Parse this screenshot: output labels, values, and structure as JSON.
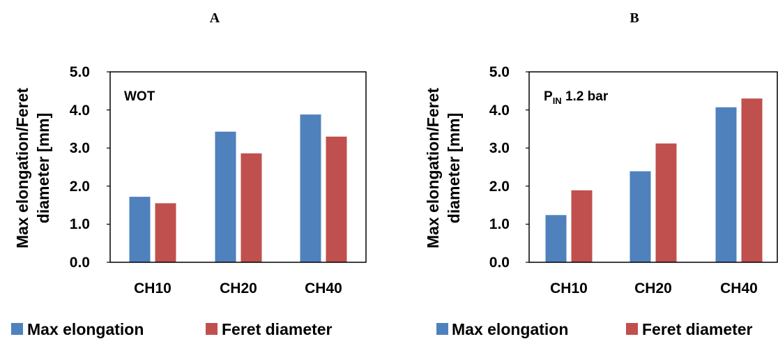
{
  "chart_data": [
    {
      "type": "bar",
      "panel_label": "A",
      "annotation": "WOT",
      "ylabel_lines": [
        "Max elongation/Feret",
        "diameter [mm]"
      ],
      "xlabel": "",
      "categories": [
        "CH10",
        "CH20",
        "CH40"
      ],
      "ylim": [
        0,
        5
      ],
      "yticks": [
        "0.0",
        "1.0",
        "2.0",
        "3.0",
        "4.0",
        "5.0"
      ],
      "grid": false,
      "legend_position": "bottom",
      "series": [
        {
          "name": "Max elongation",
          "color": "#4F81BD",
          "values": [
            1.72,
            3.43,
            3.88
          ]
        },
        {
          "name": "Feret diameter",
          "color": "#C0504D",
          "values": [
            1.55,
            2.86,
            3.3
          ]
        }
      ]
    },
    {
      "type": "bar",
      "panel_label": "B",
      "annotation_main": "P",
      "annotation_sub": "IN",
      "annotation_rest": " 1.2 bar",
      "ylabel_lines": [
        "Max elongation/Feret",
        "diameter [mm]"
      ],
      "xlabel": "",
      "categories": [
        "CH10",
        "CH20",
        "CH40"
      ],
      "ylim": [
        0,
        5
      ],
      "yticks": [
        "0.0",
        "1.0",
        "2.0",
        "3.0",
        "4.0",
        "5.0"
      ],
      "grid": false,
      "legend_position": "bottom",
      "series": [
        {
          "name": "Max elongation",
          "color": "#4F81BD",
          "values": [
            1.24,
            2.39,
            4.07
          ]
        },
        {
          "name": "Feret diameter",
          "color": "#C0504D",
          "values": [
            1.89,
            3.12,
            4.3
          ]
        }
      ]
    }
  ]
}
